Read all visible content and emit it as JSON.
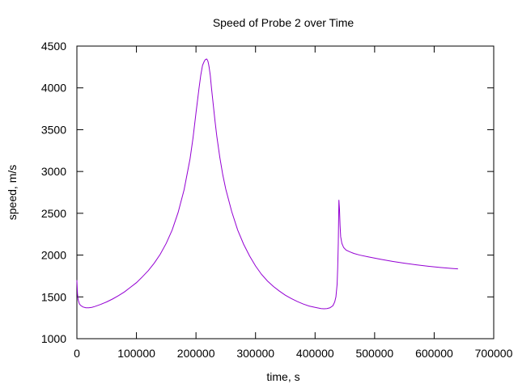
{
  "chart_data": {
    "type": "line",
    "title": "Speed of Probe 2 over Time",
    "xlabel": "time, s",
    "ylabel": "speed, m/s",
    "xlim": [
      0,
      700000
    ],
    "ylim": [
      1000,
      4500
    ],
    "xticks": [
      "0",
      "100000",
      "200000",
      "300000",
      "400000",
      "500000",
      "600000",
      "700000"
    ],
    "yticks": [
      "1000",
      "1500",
      "2000",
      "2500",
      "3000",
      "3500",
      "4000",
      "4500"
    ],
    "grid": false,
    "line_color": "#9400D3",
    "series": [
      {
        "x": [
          0,
          1000,
          2000,
          4000,
          6000,
          10000,
          15000,
          20000,
          25000,
          30000,
          40000,
          50000,
          60000,
          70000,
          80000,
          90000,
          100000,
          110000,
          120000,
          130000,
          140000,
          150000,
          160000,
          170000,
          180000,
          190000,
          195000,
          200000,
          205000,
          208000,
          211000,
          214000,
          216000,
          218000,
          219000,
          220000,
          221000,
          222000,
          224000,
          226000,
          229000,
          232000,
          235000,
          240000,
          245000,
          250000,
          260000,
          270000,
          280000,
          290000,
          300000,
          310000,
          320000,
          330000,
          340000,
          350000,
          360000,
          370000,
          380000,
          390000,
          400000,
          410000,
          415000,
          420000,
          425000,
          430000,
          433000,
          435000,
          437000,
          438000,
          439000,
          440000,
          441000,
          442000,
          443000,
          445000,
          448000,
          452000,
          458000,
          465000,
          475000,
          490000,
          510000,
          530000,
          550000,
          570000,
          590000,
          610000,
          630000,
          640000
        ],
        "y": [
          1700,
          1540,
          1470,
          1420,
          1400,
          1380,
          1370,
          1370,
          1375,
          1385,
          1410,
          1440,
          1475,
          1515,
          1560,
          1615,
          1670,
          1740,
          1815,
          1905,
          2010,
          2140,
          2300,
          2510,
          2780,
          3150,
          3400,
          3700,
          3990,
          4150,
          4270,
          4320,
          4340,
          4345,
          4335,
          4320,
          4290,
          4250,
          4150,
          4000,
          3800,
          3600,
          3420,
          3170,
          2960,
          2790,
          2520,
          2300,
          2130,
          1990,
          1870,
          1770,
          1690,
          1625,
          1570,
          1520,
          1480,
          1445,
          1415,
          1390,
          1375,
          1360,
          1358,
          1360,
          1370,
          1395,
          1440,
          1500,
          1650,
          1850,
          2150,
          2660,
          2550,
          2350,
          2220,
          2140,
          2090,
          2060,
          2040,
          2020,
          2000,
          1978,
          1950,
          1925,
          1903,
          1883,
          1866,
          1852,
          1840,
          1835
        ]
      }
    ]
  }
}
